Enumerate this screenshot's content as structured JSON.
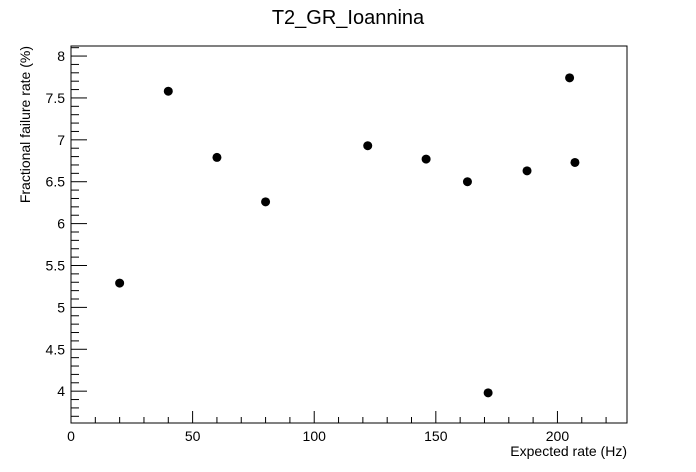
{
  "chart_data": {
    "type": "scatter",
    "title": "T2_GR_Ioannina",
    "x_label": "Expected rate (Hz)",
    "y_label": "Fractional failure rate (%)",
    "x": [
      20,
      40,
      60,
      80,
      122,
      146,
      163,
      171.5,
      187.5,
      205,
      207.2
    ],
    "values": [
      5.29,
      7.58,
      6.79,
      6.26,
      6.93,
      6.77,
      6.5,
      3.98,
      6.63,
      7.74,
      6.73
    ],
    "color": "#000000",
    "xlim": [
      0,
      228.6
    ],
    "ylim": [
      3.62,
      8.12
    ],
    "xticks": [
      0,
      50,
      100,
      150,
      200
    ],
    "yticks": [
      4,
      4.5,
      5,
      5.5,
      6,
      6.5,
      7,
      7.5,
      8
    ]
  }
}
